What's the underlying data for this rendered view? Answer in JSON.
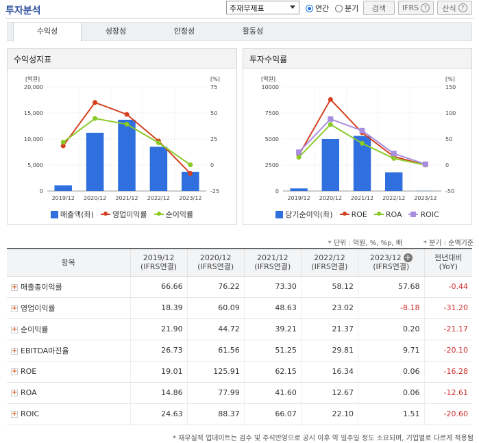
{
  "header": {
    "title": "투자분석",
    "select_value": "주재무제표",
    "radio_annual": "연간",
    "radio_quarter": "분기",
    "search_button": "검색",
    "ifrs_button": "IFRS",
    "formula_button": "산식"
  },
  "tabs": [
    "수익성",
    "성장성",
    "안정성",
    "활동성"
  ],
  "left_chart": {
    "panel_title": "수익성지표",
    "left_unit": "[억원]",
    "right_unit": "[%]",
    "left_ticks": [
      "20,000",
      "15,000",
      "10,000",
      "5,000",
      "0"
    ],
    "right_ticks": [
      "75",
      "50",
      "25",
      "0",
      "-25"
    ],
    "legend": [
      "매출액(좌)",
      "영업이익률",
      "순이익률"
    ]
  },
  "right_chart": {
    "panel_title": "투자수익률",
    "left_unit": "[억원]",
    "right_unit": "[%]",
    "left_ticks": [
      "10000",
      "7500",
      "5000",
      "2500",
      "0"
    ],
    "right_ticks": [
      "150",
      "100",
      "50",
      "0",
      "-50"
    ],
    "legend": [
      "당기순이익(좌)",
      "ROE",
      "ROA",
      "ROIC"
    ]
  },
  "chart_data": [
    {
      "type": "bar",
      "title": "수익성지표",
      "categories": [
        "2019/12",
        "2020/12",
        "2021/12",
        "2022/12",
        "2023/12"
      ],
      "ylim": [
        0,
        20000
      ],
      "y2lim": [
        -25,
        75
      ],
      "series": [
        {
          "name": "매출액(좌)",
          "type": "bar",
          "axis": "left",
          "color": "#2f6fde",
          "values": [
            1100,
            11200,
            13700,
            8500,
            3700
          ]
        },
        {
          "name": "영업이익률",
          "type": "line",
          "axis": "right",
          "color": "#d4401f",
          "values": [
            18.39,
            60.09,
            48.63,
            23.02,
            -8.18
          ]
        },
        {
          "name": "순이익률",
          "type": "line",
          "axis": "right",
          "color": "#8ac926",
          "values": [
            21.9,
            44.72,
            39.21,
            21.37,
            0.2
          ]
        }
      ]
    },
    {
      "type": "bar",
      "title": "투자수익률",
      "categories": [
        "2019/12",
        "2020/12",
        "2021/12",
        "2022/12",
        "2023/12"
      ],
      "ylim": [
        0,
        10000
      ],
      "y2lim": [
        -50,
        150
      ],
      "series": [
        {
          "name": "당기순이익(좌)",
          "type": "bar",
          "axis": "left",
          "color": "#2f6fde",
          "values": [
            250,
            5000,
            5300,
            1800,
            20
          ]
        },
        {
          "name": "ROE",
          "type": "line",
          "axis": "right",
          "color": "#d4401f",
          "values": [
            19.01,
            125.91,
            62.15,
            16.34,
            0.06
          ]
        },
        {
          "name": "ROA",
          "type": "line",
          "axis": "right",
          "color": "#8ac926",
          "values": [
            14.86,
            77.99,
            41.6,
            12.67,
            0.06
          ]
        },
        {
          "name": "ROIC",
          "type": "line",
          "axis": "right",
          "color": "#a98ee0",
          "marker": "square",
          "values": [
            24.63,
            88.37,
            66.07,
            22.1,
            1.51
          ]
        }
      ]
    }
  ],
  "notes": {
    "unit_note": "* 단위 : 억원, %, %p, 배",
    "quarter_note": "* 분기 : 순액기준",
    "footer": "* 재무실적 업데이트는 검수 및 주석반영으로 공시 이후 약 일주일 정도 소요되며, 기업별로 다르게 적용됨"
  },
  "table": {
    "header_item": "항목",
    "columns": [
      {
        "period": "2019/12",
        "basis": "(IFRS연결)"
      },
      {
        "period": "2020/12",
        "basis": "(IFRS연결)"
      },
      {
        "period": "2021/12",
        "basis": "(IFRS연결)"
      },
      {
        "period": "2022/12",
        "basis": "(IFRS연결)"
      },
      {
        "period": "2023/12",
        "basis": "(IFRS연결)"
      }
    ],
    "yoy_header_1": "전년대비",
    "yoy_header_2": "(YoY)",
    "rows": [
      {
        "name": "매출총이익률",
        "values": [
          "66.66",
          "76.22",
          "73.30",
          "58.12",
          "57.68"
        ],
        "yoy": "-0.44"
      },
      {
        "name": "영업이익률",
        "values": [
          "18.39",
          "60.09",
          "48.63",
          "23.02",
          "-8.18"
        ],
        "yoy": "-31.20"
      },
      {
        "name": "순이익률",
        "values": [
          "21.90",
          "44.72",
          "39.21",
          "21.37",
          "0.20"
        ],
        "yoy": "-21.17"
      },
      {
        "name": "EBITDA마진율",
        "values": [
          "26.73",
          "61.56",
          "51.25",
          "29.81",
          "9.71"
        ],
        "yoy": "-20.10"
      },
      {
        "name": "ROE",
        "values": [
          "19.01",
          "125.91",
          "62.15",
          "16.34",
          "0.06"
        ],
        "yoy": "-16.28"
      },
      {
        "name": "ROA",
        "values": [
          "14.86",
          "77.99",
          "41.60",
          "12.67",
          "0.06"
        ],
        "yoy": "-12.61"
      },
      {
        "name": "ROIC",
        "values": [
          "24.63",
          "88.37",
          "66.07",
          "22.10",
          "1.51"
        ],
        "yoy": "-20.60"
      }
    ]
  }
}
